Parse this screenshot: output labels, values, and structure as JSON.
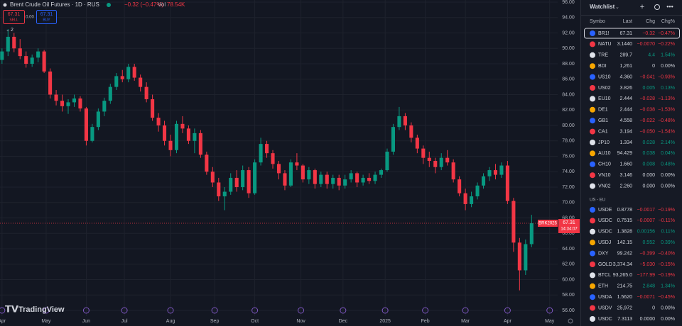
{
  "chart_data": {
    "type": "candlestick",
    "title": "Brent Crude Oil Futures · 1D · RUS",
    "change": "−0.32 (−0.47%)",
    "volume_label": "Vol",
    "volume": "78.54K",
    "sell_price": "67.31",
    "sell_label": "SELL",
    "spread": "0.00",
    "buy_price": "67.31",
    "buy_label": "BUY",
    "indicator_count": "2",
    "up_color": "#089981",
    "down_color": "#f23645",
    "x": [
      0,
      3,
      6,
      9,
      12,
      15,
      18,
      21,
      24,
      27,
      30,
      33,
      36,
      39,
      42,
      45,
      48,
      51,
      54,
      57,
      60,
      63,
      66,
      69,
      72,
      75,
      78,
      81,
      84,
      87,
      90,
      93,
      96,
      99,
      102,
      105,
      108,
      111,
      114,
      117,
      120,
      123,
      126,
      129,
      132,
      135,
      138,
      141,
      144,
      147,
      150,
      153,
      156,
      159,
      162,
      165,
      168,
      171,
      174,
      177,
      180,
      183,
      186,
      189,
      192,
      195,
      198,
      201,
      204,
      207,
      210,
      213,
      216,
      219,
      222,
      225,
      228,
      231,
      234,
      237,
      240,
      243,
      246,
      249,
      252,
      255,
      258,
      261,
      264
    ],
    "open": [
      88.5,
      89.6,
      91.5,
      90,
      89,
      88,
      88.8,
      89.6,
      87,
      84,
      83.2,
      82.5,
      83,
      83.5,
      82.2,
      78,
      79.8,
      81.8,
      83.2,
      85,
      86.4,
      86,
      87.6,
      86.2,
      85,
      83.4,
      81,
      80,
      78,
      76.8,
      80.2,
      79.6,
      78,
      79,
      76.2,
      74,
      72.6,
      70.8,
      71.4,
      73.2,
      72,
      74.2,
      71.2,
      75.2,
      77.6,
      76.4,
      75,
      73.8,
      72.2,
      75.2,
      74.8,
      73,
      74.2,
      72.4,
      73.6,
      72.4,
      73.2,
      72.2,
      73,
      73.8,
      72.6,
      73.2,
      72.8,
      73.6,
      74.2,
      76.6,
      79.8,
      81.2,
      80,
      78.4,
      77,
      75.8,
      75.4,
      74.6,
      75.8,
      75.2,
      73,
      71.2,
      69.8,
      70.8,
      72.2,
      73.4,
      74.2,
      73.6,
      74.8,
      70.2,
      64.8,
      61.2,
      64.6
    ],
    "high": [
      90,
      92.5,
      92,
      91.2,
      89.6,
      89.2,
      90,
      89.8,
      87.4,
      84.6,
      84,
      83.4,
      84,
      83.8,
      82.4,
      80.2,
      82.2,
      83.6,
      85.4,
      86.8,
      87.2,
      88,
      88,
      86.6,
      85.6,
      84,
      81.6,
      80.6,
      78.8,
      80.6,
      81.2,
      80,
      79.6,
      79.4,
      76.6,
      74.6,
      73.2,
      72,
      73.8,
      74.2,
      74.8,
      74.6,
      75.6,
      78.4,
      78,
      76.8,
      75.4,
      74.2,
      75.6,
      76.4,
      75,
      74.6,
      74.4,
      74,
      74,
      73.6,
      73.6,
      73.6,
      74.2,
      74,
      73.6,
      73.8,
      74,
      74.4,
      77,
      80.2,
      82.4,
      81.6,
      80.4,
      78.8,
      77.4,
      76.6,
      75.8,
      76.4,
      76.8,
      75.6,
      73.4,
      71.8,
      71.4,
      72.6,
      73.8,
      74.6,
      75,
      75.2,
      75.4,
      70.6,
      65.4,
      65.2,
      68.4
    ],
    "low": [
      88,
      89,
      89.5,
      88.6,
      87.5,
      87.6,
      88.2,
      86.8,
      83.5,
      82.6,
      81.8,
      81.5,
      82.4,
      81.8,
      77.4,
      77.8,
      79.4,
      81.2,
      82.8,
      84.6,
      85.6,
      85.6,
      85.8,
      84.4,
      83,
      80.6,
      79.2,
      77.4,
      76,
      76.4,
      79,
      77.6,
      76.4,
      75.8,
      73.6,
      72,
      70.2,
      69,
      71,
      71.4,
      71.6,
      70.6,
      71,
      74.8,
      75.8,
      74.4,
      73,
      71.6,
      72,
      74.2,
      72.6,
      72.4,
      71.8,
      72,
      71.8,
      71.8,
      71.6,
      71.8,
      72.6,
      72,
      72.2,
      72.4,
      72.4,
      73.2,
      74,
      76.2,
      79.4,
      79.4,
      77.8,
      76.4,
      75,
      74.6,
      73.8,
      74.2,
      74.8,
      72.6,
      70.8,
      69,
      69.4,
      70.4,
      71.8,
      72.8,
      73,
      73.2,
      69.8,
      63.6,
      58.6,
      60.6,
      64.2
    ],
    "close": [
      89.6,
      91.5,
      90,
      89,
      88,
      88.8,
      89.6,
      87,
      84,
      83.2,
      82.5,
      83,
      83.5,
      82.2,
      78,
      79.8,
      81.8,
      83.2,
      85,
      86.4,
      86,
      87.6,
      86.2,
      85,
      83.4,
      81,
      80,
      78,
      76.8,
      80.2,
      79.6,
      78,
      79,
      76.2,
      74,
      72.6,
      70.8,
      71.4,
      73.2,
      72,
      74.2,
      71.2,
      75.2,
      77.6,
      76.4,
      75,
      73.8,
      72.2,
      75.2,
      74.8,
      73,
      74.2,
      72.4,
      73.6,
      72.4,
      73.2,
      72.2,
      73,
      73.8,
      72.6,
      73.2,
      72.8,
      73.6,
      74.2,
      76.6,
      79.8,
      81.2,
      80,
      78.4,
      77,
      75.8,
      75.4,
      74.6,
      75.8,
      75.2,
      73,
      71.2,
      69.8,
      70.8,
      72.2,
      73.4,
      74.2,
      73.6,
      74.8,
      70.2,
      64.8,
      61.2,
      64.6,
      67.31
    ],
    "last_symbol": "BRK2025",
    "last_price": 67.31,
    "countdown": "14:34:07",
    "xlim": [
      -1,
      277
    ],
    "ylim": [
      56,
      96
    ],
    "xticks": [
      {
        "value": 0,
        "label": "Apr"
      },
      {
        "value": 22,
        "label": "May"
      },
      {
        "value": 42,
        "label": "Jun"
      },
      {
        "value": 61,
        "label": "Jul"
      },
      {
        "value": 84,
        "label": "Aug"
      },
      {
        "value": 106,
        "label": "Sep"
      },
      {
        "value": 126,
        "label": "Oct"
      },
      {
        "value": 149,
        "label": "Nov"
      },
      {
        "value": 170,
        "label": "Dec"
      },
      {
        "value": 191,
        "label": "2025"
      },
      {
        "value": 211,
        "label": "Feb"
      },
      {
        "value": 231,
        "label": "Mar"
      },
      {
        "value": 252,
        "label": "Apr"
      },
      {
        "value": 273,
        "label": "May"
      }
    ],
    "yticks": [
      {
        "value": 56,
        "label": "56.00"
      },
      {
        "value": 58,
        "label": "58.00"
      },
      {
        "value": 60,
        "label": "60.00"
      },
      {
        "value": 62,
        "label": "62.00"
      },
      {
        "value": 64,
        "label": "64.00"
      },
      {
        "value": 66,
        "label": "66.00"
      },
      {
        "value": 68,
        "label": "68.00"
      },
      {
        "value": 70,
        "label": "70.00"
      },
      {
        "value": 72,
        "label": "72.00"
      },
      {
        "value": 74,
        "label": "74.00"
      },
      {
        "value": 76,
        "label": "76.00"
      },
      {
        "value": 78,
        "label": "78.00"
      },
      {
        "value": 80,
        "label": "80.00"
      },
      {
        "value": 82,
        "label": "82.00"
      },
      {
        "value": 84,
        "label": "84.00"
      },
      {
        "value": 86,
        "label": "86.00"
      },
      {
        "value": 88,
        "label": "88.00"
      },
      {
        "value": 90,
        "label": "90.00"
      },
      {
        "value": 92,
        "label": "92.00"
      },
      {
        "value": 94,
        "label": "94.00"
      },
      {
        "value": 96,
        "label": "96.00"
      }
    ],
    "grid": true
  },
  "branding": "TradingView",
  "watchlist": {
    "title": "Watchlist",
    "columns": [
      "Symbo",
      "Last",
      "Chg",
      "Chg%"
    ],
    "groups": [
      {
        "rows": [
          [
            "BR1!",
            "67.31",
            "−0.32",
            "−0.47%"
          ],
          [
            "NATU",
            "3.1440",
            "−0.0070",
            "−0.22%"
          ],
          [
            "TRE",
            "289.7",
            "4.4",
            "1.54%"
          ],
          [
            "BDI",
            "1,261",
            "0",
            "0.00%"
          ],
          [
            "US10",
            "4.360",
            "−0.041",
            "−0.93%"
          ],
          [
            "US02",
            "3.826",
            "0.005",
            "0.13%"
          ],
          [
            "EU10",
            "2.444",
            "−0.028",
            "−1.13%"
          ],
          [
            "DE1",
            "2.444",
            "−0.038",
            "−1.53%"
          ],
          [
            "GB1",
            "4.558",
            "−0.022",
            "−0.48%"
          ],
          [
            "CA1",
            "3.194",
            "−0.050",
            "−1.54%"
          ],
          [
            "JP10",
            "1.334",
            "0.028",
            "2.14%"
          ],
          [
            "AU10",
            "94.429",
            "0.038",
            "0.04%"
          ],
          [
            "CH10",
            "1.660",
            "0.008",
            "0.48%"
          ],
          [
            "VN10",
            "3.146",
            "0.000",
            "0.00%"
          ],
          [
            "VN02",
            "2.260",
            "0.000",
            "0.00%"
          ]
        ]
      },
      {
        "name": "US - EU",
        "rows": [
          [
            "USDE",
            "0.8778",
            "−0.0017",
            "−0.19%"
          ],
          [
            "USDC",
            "0.7515",
            "−0.0007",
            "−0.11%"
          ],
          [
            "USDC",
            "1.3828",
            "0.00156",
            "0.11%"
          ],
          [
            "USDJ",
            "142.15",
            "0.552",
            "0.39%"
          ],
          [
            "DXY",
            "99.242",
            "−0.399",
            "−0.40%"
          ],
          [
            "GOLD",
            "3,374.34",
            "−5.030",
            "−0.15%"
          ],
          [
            "BTCL",
            "93,265.0",
            "−177.99",
            "−0.19%"
          ],
          [
            "ETH",
            "214.75",
            "2.848",
            "1.34%"
          ],
          [
            "USDA",
            "1.5620",
            "−0.0071",
            "−0.45%"
          ],
          [
            "USDV",
            "25,972",
            "0",
            "0.00%"
          ],
          [
            "USDC",
            "7.3113",
            "0.0000",
            "0.00%"
          ]
        ]
      }
    ]
  }
}
